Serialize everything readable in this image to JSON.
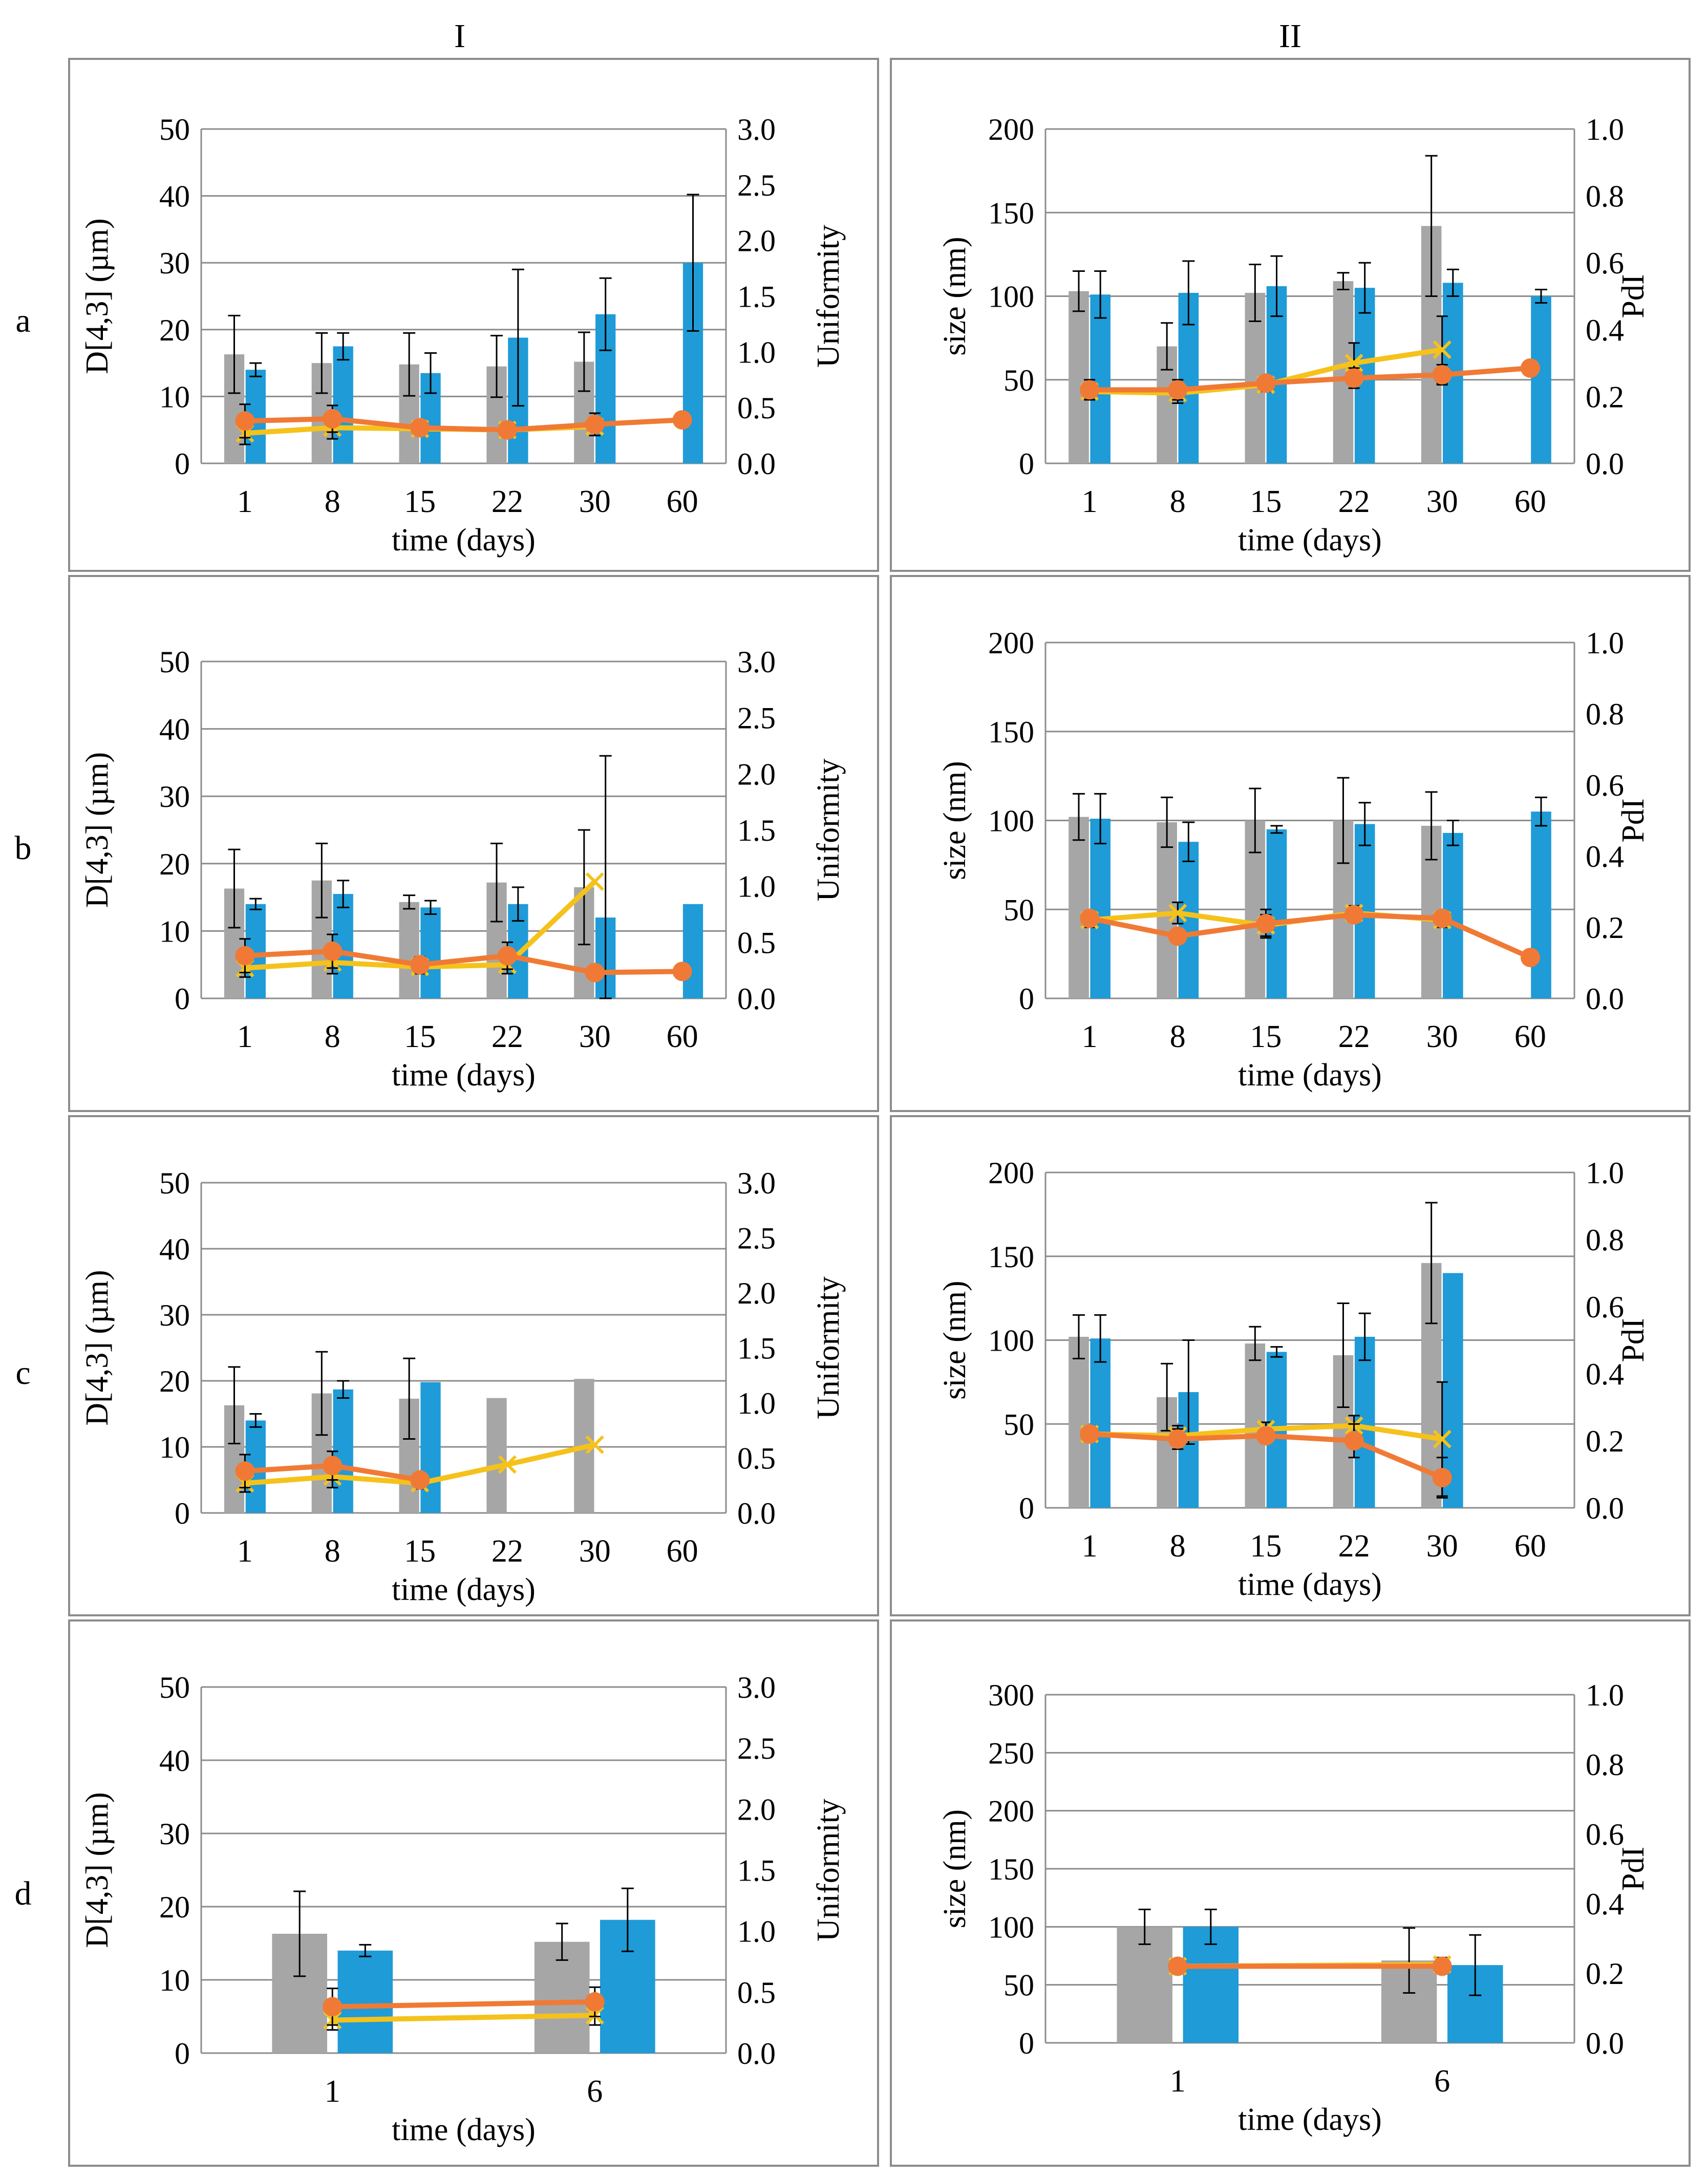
{
  "columns": [
    "I",
    "II"
  ],
  "rows": [
    "a",
    "b",
    "c",
    "d"
  ],
  "colors": {
    "bar_gray": "#a6a6a6",
    "bar_blue": "#1f9bd7",
    "line_orange": "#f07a35",
    "line_yellow": "#f5c21b",
    "grid": "#8c8c8c",
    "error_bar": "#000000"
  },
  "chart_data": [
    {
      "id": "Ia",
      "type": "bar",
      "xlabel": "time (days)",
      "ylabel": "D[4,3] (µm)",
      "y2label": "Uniformity",
      "categories": [
        "1",
        "8",
        "15",
        "22",
        "30",
        "60"
      ],
      "ylim": [
        0,
        50
      ],
      "yticks": [
        "0",
        "10",
        "20",
        "30",
        "40",
        "50"
      ],
      "y2lim": [
        0,
        3
      ],
      "y2ticks": [
        "0.0",
        "0.5",
        "1.0",
        "1.5",
        "2.0",
        "2.5",
        "3.0"
      ],
      "bar_series": [
        {
          "name": "gray",
          "values": [
            16.3,
            15,
            14.8,
            14.5,
            15.2,
            null
          ],
          "errors": [
            5.8,
            4.5,
            4.7,
            4.6,
            4.4,
            null
          ]
        },
        {
          "name": "blue",
          "values": [
            14,
            17.5,
            13.5,
            18.8,
            22.3,
            30
          ],
          "errors": [
            1,
            2,
            3,
            10.2,
            5.4,
            10.2
          ]
        }
      ],
      "line_series": [
        {
          "name": "orange",
          "values": [
            0.38,
            0.4,
            0.32,
            0.3,
            0.35,
            0.39
          ],
          "errors": [
            0.15,
            0.12,
            0.05,
            0.04,
            0.1,
            0
          ]
        },
        {
          "name": "yellow",
          "values": [
            0.27,
            0.32,
            0.31,
            0.3,
            0.33,
            null
          ],
          "errors": [
            0.1,
            0.1,
            0.05,
            0.04,
            0.08,
            null
          ]
        }
      ]
    },
    {
      "id": "IIa",
      "type": "bar",
      "xlabel": "time (days)",
      "ylabel": "size (nm)",
      "y2label": "PdI",
      "categories": [
        "1",
        "8",
        "15",
        "22",
        "30",
        "60"
      ],
      "ylim": [
        0,
        200
      ],
      "yticks": [
        "0",
        "50",
        "100",
        "150",
        "200"
      ],
      "y2lim": [
        0,
        1
      ],
      "y2ticks": [
        "0.0",
        "0.2",
        "0.4",
        "0.6",
        "0.8",
        "1.0"
      ],
      "bar_series": [
        {
          "name": "gray",
          "values": [
            103,
            70,
            102,
            109,
            142,
            null
          ],
          "errors": [
            12,
            14,
            17,
            5,
            42,
            null
          ]
        },
        {
          "name": "blue",
          "values": [
            101,
            102,
            106,
            105,
            108,
            100
          ],
          "errors": [
            14,
            19,
            18,
            15,
            8,
            4
          ]
        }
      ],
      "line_series": [
        {
          "name": "orange",
          "values": [
            0.22,
            0.22,
            0.24,
            0.255,
            0.265,
            0.285
          ],
          "errors": [
            0.03,
            0.03,
            0.02,
            0.03,
            0.03,
            0
          ]
        },
        {
          "name": "yellow",
          "values": [
            0.215,
            0.21,
            0.235,
            0.3,
            0.34,
            null
          ],
          "errors": [
            0.02,
            0.03,
            0.02,
            0.06,
            0.1,
            null
          ]
        }
      ]
    },
    {
      "id": "Ib",
      "type": "bar",
      "xlabel": "time (days)",
      "ylabel": "D[4,3] (µm)",
      "y2label": "Uniformity",
      "categories": [
        "1",
        "8",
        "15",
        "22",
        "30",
        "60"
      ],
      "ylim": [
        0,
        50
      ],
      "yticks": [
        "0",
        "10",
        "20",
        "30",
        "40",
        "50"
      ],
      "y2lim": [
        0,
        3
      ],
      "y2ticks": [
        "0.0",
        "0.5",
        "1.0",
        "1.5",
        "2.0",
        "2.5",
        "3.0"
      ],
      "bar_series": [
        {
          "name": "gray",
          "values": [
            16.3,
            17.5,
            14.3,
            17.2,
            16.5,
            null
          ],
          "errors": [
            5.8,
            5.5,
            1,
            5.8,
            8.5,
            null
          ]
        },
        {
          "name": "blue",
          "values": [
            14,
            15.5,
            13.5,
            14,
            12,
            14
          ],
          "errors": [
            0.8,
            2,
            1,
            2.5,
            24,
            0
          ]
        }
      ],
      "line_series": [
        {
          "name": "orange",
          "values": [
            0.38,
            0.42,
            0.3,
            0.38,
            0.23,
            0.24
          ],
          "errors": [
            0.15,
            0.15,
            0.07,
            0.12,
            0,
            0
          ]
        },
        {
          "name": "yellow",
          "values": [
            0.27,
            0.32,
            0.28,
            0.3,
            1.04,
            null
          ],
          "errors": [
            0.08,
            0.1,
            0.06,
            0.08,
            0,
            null
          ]
        }
      ]
    },
    {
      "id": "IIb",
      "type": "bar",
      "xlabel": "time (days)",
      "ylabel": "size (nm)",
      "y2label": "PdI",
      "categories": [
        "1",
        "8",
        "15",
        "22",
        "30",
        "60"
      ],
      "ylim": [
        0,
        200
      ],
      "yticks": [
        "0",
        "50",
        "100",
        "150",
        "200"
      ],
      "y2lim": [
        0,
        1
      ],
      "y2ticks": [
        "0.0",
        "0.2",
        "0.4",
        "0.6",
        "0.8",
        "1.0"
      ],
      "bar_series": [
        {
          "name": "gray",
          "values": [
            102,
            99,
            100,
            100,
            97,
            null
          ],
          "errors": [
            13,
            14,
            18,
            24,
            19,
            null
          ]
        },
        {
          "name": "blue",
          "values": [
            101,
            88,
            95,
            98,
            93,
            105
          ],
          "errors": [
            14,
            11,
            2,
            12,
            7,
            8
          ]
        }
      ],
      "line_series": [
        {
          "name": "orange",
          "values": [
            0.225,
            0.175,
            0.21,
            0.235,
            0.225,
            0.115
          ],
          "errors": [
            0.02,
            0.02,
            0.04,
            0.02,
            0.02,
            0
          ]
        },
        {
          "name": "yellow",
          "values": [
            0.22,
            0.24,
            0.205,
            0.24,
            0.22,
            null
          ],
          "errors": [
            0.02,
            0.03,
            0.03,
            0.02,
            0.02,
            null
          ]
        }
      ]
    },
    {
      "id": "Ic",
      "type": "bar",
      "xlabel": "time (days)",
      "ylabel": "D[4,3] (µm)",
      "y2label": "Uniformity",
      "categories": [
        "1",
        "8",
        "15",
        "22",
        "30",
        "60"
      ],
      "ylim": [
        0,
        50
      ],
      "yticks": [
        "0",
        "10",
        "20",
        "30",
        "40",
        "50"
      ],
      "y2lim": [
        0,
        3
      ],
      "y2ticks": [
        "0.0",
        "0.5",
        "1.0",
        "1.5",
        "2.0",
        "2.5",
        "3.0"
      ],
      "bar_series": [
        {
          "name": "gray",
          "values": [
            16.3,
            18.1,
            17.3,
            17.4,
            20.3,
            null
          ],
          "errors": [
            5.8,
            6.3,
            6.1,
            0,
            0,
            null
          ]
        },
        {
          "name": "blue",
          "values": [
            14,
            18.7,
            19.8,
            null,
            null,
            null
          ],
          "errors": [
            1,
            1.3,
            0,
            null,
            null,
            null
          ]
        }
      ],
      "line_series": [
        {
          "name": "orange",
          "values": [
            0.38,
            0.43,
            0.3,
            null,
            null,
            null
          ],
          "errors": [
            0.15,
            0.13,
            0.06,
            null,
            null,
            null
          ]
        },
        {
          "name": "yellow",
          "values": [
            0.27,
            0.33,
            0.27,
            0.44,
            0.62,
            null
          ],
          "errors": [
            0.08,
            0.1,
            0.05,
            0,
            0,
            null
          ]
        }
      ]
    },
    {
      "id": "IIc",
      "type": "bar",
      "xlabel": "time (days)",
      "ylabel": "size (nm)",
      "y2label": "PdI",
      "categories": [
        "1",
        "8",
        "15",
        "22",
        "30",
        "60"
      ],
      "ylim": [
        0,
        200
      ],
      "yticks": [
        "0",
        "50",
        "100",
        "150",
        "200"
      ],
      "y2lim": [
        0,
        1
      ],
      "y2ticks": [
        "0.0",
        "0.2",
        "0.4",
        "0.6",
        "0.8",
        "1.0"
      ],
      "bar_series": [
        {
          "name": "gray",
          "values": [
            102,
            66,
            98,
            91,
            146,
            null
          ],
          "errors": [
            13,
            20,
            10,
            31,
            36,
            null
          ]
        },
        {
          "name": "blue",
          "values": [
            101,
            69,
            93,
            102,
            140,
            null
          ],
          "errors": [
            14,
            31,
            3,
            14,
            0,
            null
          ]
        }
      ],
      "line_series": [
        {
          "name": "orange",
          "values": [
            0.22,
            0.205,
            0.215,
            0.2,
            0.09,
            null
          ],
          "errors": [
            0.02,
            0.03,
            0.02,
            0.05,
            0.06,
            null
          ]
        },
        {
          "name": "yellow",
          "values": [
            0.22,
            0.215,
            0.235,
            0.245,
            0.205,
            null
          ],
          "errors": [
            0.02,
            0.03,
            0.02,
            0.03,
            0.17,
            null
          ]
        }
      ]
    },
    {
      "id": "Id",
      "type": "bar",
      "xlabel": "time (days)",
      "ylabel": "D[4,3] (µm)",
      "y2label": "Uniformity",
      "categories": [
        "1",
        "6"
      ],
      "ylim": [
        0,
        50
      ],
      "yticks": [
        "0",
        "10",
        "20",
        "30",
        "40",
        "50"
      ],
      "y2lim": [
        0,
        3
      ],
      "y2ticks": [
        "0.0",
        "0.5",
        "1.0",
        "1.5",
        "2.0",
        "2.5",
        "3.0"
      ],
      "bar_series": [
        {
          "name": "gray",
          "values": [
            16.3,
            15.2
          ],
          "errors": [
            5.8,
            2.5
          ]
        },
        {
          "name": "blue",
          "values": [
            14,
            18.2
          ],
          "errors": [
            0.8,
            4.3
          ]
        }
      ],
      "line_series": [
        {
          "name": "orange",
          "values": [
            0.38,
            0.42
          ],
          "errors": [
            0.15,
            0.12
          ]
        },
        {
          "name": "yellow",
          "values": [
            0.27,
            0.31
          ],
          "errors": [
            0.08,
            0.08
          ]
        }
      ]
    },
    {
      "id": "IId",
      "type": "bar",
      "xlabel": "time (days)",
      "ylabel": "size (nm)",
      "y2label": "PdI",
      "categories": [
        "1",
        "6"
      ],
      "ylim": [
        0,
        300
      ],
      "yticks": [
        "0",
        "50",
        "100",
        "150",
        "200",
        "250",
        "300"
      ],
      "y2lim": [
        0,
        1
      ],
      "y2ticks": [
        "0.0",
        "0.2",
        "0.4",
        "0.6",
        "0.8",
        "1.0"
      ],
      "bar_series": [
        {
          "name": "gray",
          "values": [
            100,
            71
          ],
          "errors": [
            15,
            28
          ]
        },
        {
          "name": "blue",
          "values": [
            100,
            67
          ],
          "errors": [
            15,
            26
          ]
        }
      ],
      "line_series": [
        {
          "name": "orange",
          "values": [
            0.22,
            0.22
          ],
          "errors": [
            0.01,
            0.02
          ]
        },
        {
          "name": "yellow",
          "values": [
            0.22,
            0.225
          ],
          "errors": [
            0.01,
            0.02
          ]
        }
      ]
    }
  ]
}
